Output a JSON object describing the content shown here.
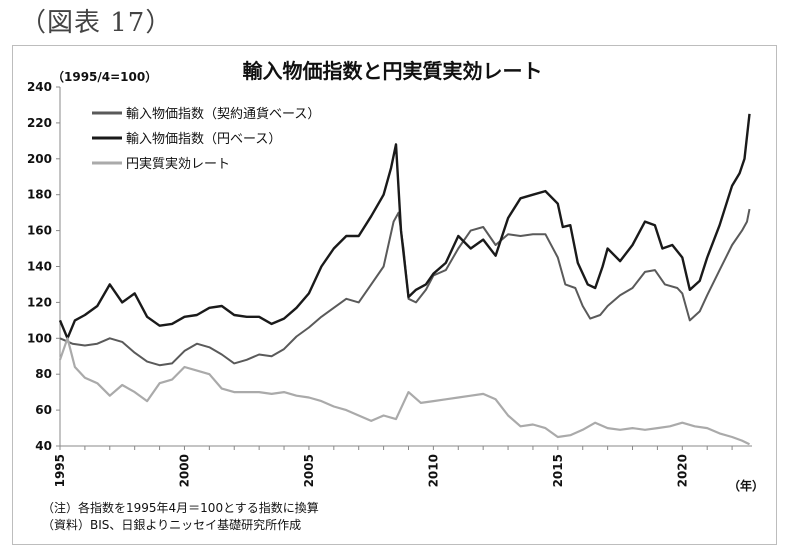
{
  "figure_label": "（図表 17）",
  "chart_data": {
    "type": "line",
    "title": "輸入物価指数と円実質実効レート",
    "unit_label": "（1995/4=100）",
    "xlabel": "（年）",
    "x_ticks": [
      "1995",
      "2000",
      "2005",
      "2010",
      "2015",
      "2020"
    ],
    "y_ticks": [
      "40",
      "60",
      "80",
      "100",
      "120",
      "140",
      "160",
      "180",
      "200",
      "220",
      "240"
    ],
    "ylim": [
      40,
      240
    ],
    "xlim": [
      1995.0,
      2022.8
    ],
    "grid": false,
    "legend_position": "top-left",
    "series": [
      {
        "name": "輸入物価指数（契約通貨ベース）",
        "color": "#5a5a5a",
        "points": [
          [
            1995.0,
            100
          ],
          [
            1995.5,
            97
          ],
          [
            1996.0,
            96
          ],
          [
            1996.5,
            97
          ],
          [
            1997.0,
            100
          ],
          [
            1997.5,
            98
          ],
          [
            1998.0,
            92
          ],
          [
            1998.5,
            87
          ],
          [
            1999.0,
            85
          ],
          [
            1999.5,
            86
          ],
          [
            2000.0,
            93
          ],
          [
            2000.5,
            97
          ],
          [
            2001.0,
            95
          ],
          [
            2001.5,
            91
          ],
          [
            2002.0,
            86
          ],
          [
            2002.5,
            88
          ],
          [
            2003.0,
            91
          ],
          [
            2003.5,
            90
          ],
          [
            2004.0,
            94
          ],
          [
            2004.5,
            101
          ],
          [
            2005.0,
            106
          ],
          [
            2005.5,
            112
          ],
          [
            2006.0,
            117
          ],
          [
            2006.5,
            122
          ],
          [
            2007.0,
            120
          ],
          [
            2007.5,
            130
          ],
          [
            2008.0,
            140
          ],
          [
            2008.4,
            165
          ],
          [
            2008.6,
            170
          ],
          [
            2008.8,
            150
          ],
          [
            2009.0,
            122
          ],
          [
            2009.3,
            120
          ],
          [
            2009.7,
            127
          ],
          [
            2010.0,
            135
          ],
          [
            2010.5,
            138
          ],
          [
            2011.0,
            150
          ],
          [
            2011.5,
            160
          ],
          [
            2012.0,
            162
          ],
          [
            2012.5,
            152
          ],
          [
            2013.0,
            158
          ],
          [
            2013.5,
            157
          ],
          [
            2014.0,
            158
          ],
          [
            2014.5,
            158
          ],
          [
            2015.0,
            145
          ],
          [
            2015.3,
            130
          ],
          [
            2015.7,
            128
          ],
          [
            2016.0,
            118
          ],
          [
            2016.3,
            111
          ],
          [
            2016.7,
            113
          ],
          [
            2017.0,
            118
          ],
          [
            2017.5,
            124
          ],
          [
            2018.0,
            128
          ],
          [
            2018.5,
            137
          ],
          [
            2018.9,
            138
          ],
          [
            2019.3,
            130
          ],
          [
            2019.8,
            128
          ],
          [
            2020.0,
            125
          ],
          [
            2020.3,
            110
          ],
          [
            2020.7,
            115
          ],
          [
            2021.0,
            124
          ],
          [
            2021.5,
            138
          ],
          [
            2022.0,
            152
          ],
          [
            2022.4,
            160
          ],
          [
            2022.6,
            165
          ],
          [
            2022.7,
            172
          ]
        ]
      },
      {
        "name": "輸入物価指数（円ベース）",
        "color": "#1a1a1a",
        "points": [
          [
            1995.0,
            110
          ],
          [
            1995.3,
            100
          ],
          [
            1995.6,
            110
          ],
          [
            1996.0,
            113
          ],
          [
            1996.5,
            118
          ],
          [
            1997.0,
            130
          ],
          [
            1997.5,
            120
          ],
          [
            1998.0,
            125
          ],
          [
            1998.5,
            112
          ],
          [
            1999.0,
            107
          ],
          [
            1999.5,
            108
          ],
          [
            2000.0,
            112
          ],
          [
            2000.5,
            113
          ],
          [
            2001.0,
            117
          ],
          [
            2001.5,
            118
          ],
          [
            2002.0,
            113
          ],
          [
            2002.5,
            112
          ],
          [
            2003.0,
            112
          ],
          [
            2003.5,
            108
          ],
          [
            2004.0,
            111
          ],
          [
            2004.5,
            117
          ],
          [
            2005.0,
            125
          ],
          [
            2005.5,
            140
          ],
          [
            2006.0,
            150
          ],
          [
            2006.5,
            157
          ],
          [
            2007.0,
            157
          ],
          [
            2007.5,
            168
          ],
          [
            2008.0,
            180
          ],
          [
            2008.3,
            195
          ],
          [
            2008.5,
            208
          ],
          [
            2008.7,
            160
          ],
          [
            2009.0,
            123
          ],
          [
            2009.3,
            127
          ],
          [
            2009.7,
            130
          ],
          [
            2010.0,
            136
          ],
          [
            2010.5,
            142
          ],
          [
            2011.0,
            157
          ],
          [
            2011.5,
            150
          ],
          [
            2012.0,
            155
          ],
          [
            2012.5,
            146
          ],
          [
            2013.0,
            167
          ],
          [
            2013.5,
            178
          ],
          [
            2014.0,
            180
          ],
          [
            2014.5,
            182
          ],
          [
            2015.0,
            175
          ],
          [
            2015.2,
            162
          ],
          [
            2015.5,
            163
          ],
          [
            2015.8,
            142
          ],
          [
            2016.2,
            130
          ],
          [
            2016.5,
            128
          ],
          [
            2016.8,
            140
          ],
          [
            2017.0,
            150
          ],
          [
            2017.5,
            143
          ],
          [
            2018.0,
            152
          ],
          [
            2018.5,
            165
          ],
          [
            2018.9,
            163
          ],
          [
            2019.2,
            150
          ],
          [
            2019.6,
            152
          ],
          [
            2020.0,
            145
          ],
          [
            2020.3,
            127
          ],
          [
            2020.7,
            132
          ],
          [
            2021.0,
            145
          ],
          [
            2021.5,
            163
          ],
          [
            2022.0,
            185
          ],
          [
            2022.3,
            192
          ],
          [
            2022.5,
            200
          ],
          [
            2022.7,
            225
          ]
        ]
      },
      {
        "name": "円実質実効レート",
        "color": "#aaaaaa",
        "points": [
          [
            1995.0,
            88
          ],
          [
            1995.3,
            100
          ],
          [
            1995.6,
            84
          ],
          [
            1996.0,
            78
          ],
          [
            1996.5,
            75
          ],
          [
            1997.0,
            68
          ],
          [
            1997.5,
            74
          ],
          [
            1998.0,
            70
          ],
          [
            1998.5,
            65
          ],
          [
            1999.0,
            75
          ],
          [
            1999.5,
            77
          ],
          [
            2000.0,
            84
          ],
          [
            2000.5,
            82
          ],
          [
            2001.0,
            80
          ],
          [
            2001.5,
            72
          ],
          [
            2002.0,
            70
          ],
          [
            2002.5,
            70
          ],
          [
            2003.0,
            70
          ],
          [
            2003.5,
            69
          ],
          [
            2004.0,
            70
          ],
          [
            2004.5,
            68
          ],
          [
            2005.0,
            67
          ],
          [
            2005.5,
            65
          ],
          [
            2006.0,
            62
          ],
          [
            2006.5,
            60
          ],
          [
            2007.0,
            57
          ],
          [
            2007.5,
            54
          ],
          [
            2008.0,
            57
          ],
          [
            2008.5,
            55
          ],
          [
            2009.0,
            70
          ],
          [
            2009.5,
            64
          ],
          [
            2010.0,
            65
          ],
          [
            2010.5,
            66
          ],
          [
            2011.0,
            67
          ],
          [
            2011.5,
            68
          ],
          [
            2012.0,
            69
          ],
          [
            2012.5,
            66
          ],
          [
            2013.0,
            57
          ],
          [
            2013.5,
            51
          ],
          [
            2014.0,
            52
          ],
          [
            2014.5,
            50
          ],
          [
            2015.0,
            45
          ],
          [
            2015.5,
            46
          ],
          [
            2016.0,
            49
          ],
          [
            2016.5,
            53
          ],
          [
            2017.0,
            50
          ],
          [
            2017.5,
            49
          ],
          [
            2018.0,
            50
          ],
          [
            2018.5,
            49
          ],
          [
            2019.0,
            50
          ],
          [
            2019.5,
            51
          ],
          [
            2020.0,
            53
          ],
          [
            2020.5,
            51
          ],
          [
            2021.0,
            50
          ],
          [
            2021.5,
            47
          ],
          [
            2022.0,
            45
          ],
          [
            2022.4,
            43
          ],
          [
            2022.7,
            41
          ]
        ]
      }
    ]
  },
  "notes": [
    "（注）各指数を1995年4月＝100とする指数に換算",
    "（資料）BIS、日銀よりニッセイ基礎研究所作成"
  ]
}
